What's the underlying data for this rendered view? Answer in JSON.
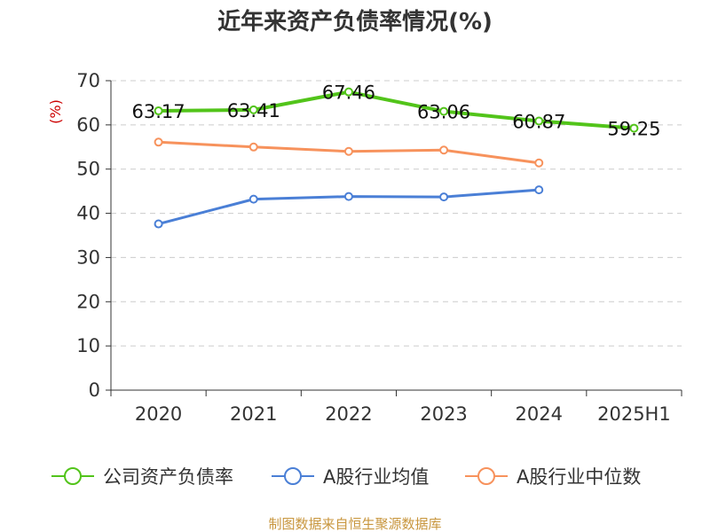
{
  "chart_data": {
    "type": "line",
    "title": "近年来资产负债率情况(%)",
    "ylabel": "(%)",
    "xlabel": "",
    "categories": [
      "2020",
      "2021",
      "2022",
      "2023",
      "2024",
      "2025H1"
    ],
    "ylim": [
      0,
      70
    ],
    "yticks": [
      0,
      10,
      20,
      30,
      40,
      50,
      60,
      70
    ],
    "grid": true,
    "legend_position": "bottom",
    "series": [
      {
        "name": "公司资产负债率",
        "color": "#52c41a",
        "values": [
          63.17,
          63.41,
          67.46,
          63.06,
          60.87,
          59.25
        ],
        "labels": [
          "63.17",
          "63.41",
          "67.46",
          "63.06",
          "60.87",
          "59.25"
        ]
      },
      {
        "name": "A股行业均值",
        "color": "#4a7fd6",
        "values": [
          37.6,
          43.2,
          43.8,
          43.7,
          45.3,
          null
        ]
      },
      {
        "name": "A股行业中位数",
        "color": "#f7925c",
        "values": [
          56.1,
          55.0,
          54.0,
          54.3,
          51.4,
          null
        ]
      }
    ]
  },
  "source": "制图数据来自恒生聚源数据库"
}
